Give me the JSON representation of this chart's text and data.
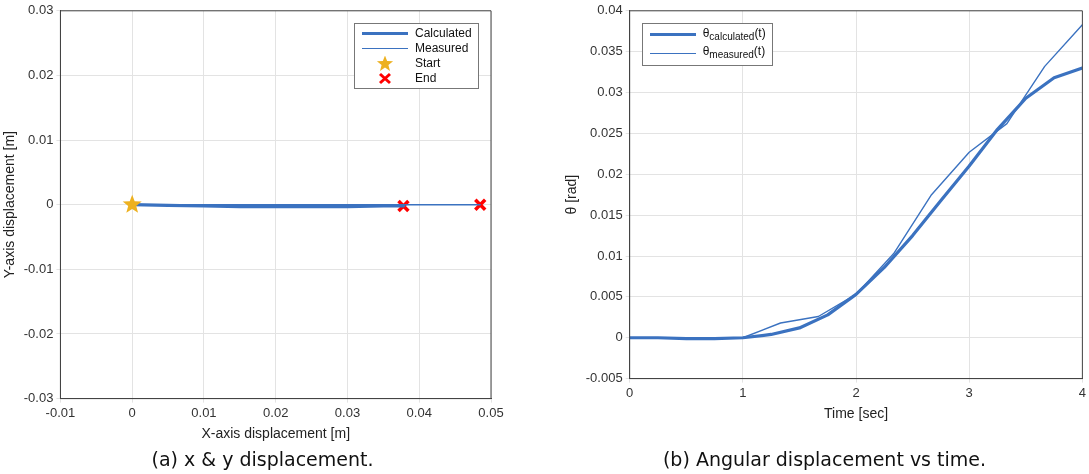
{
  "chart_data": [
    {
      "type": "line",
      "title": "(a) x & y displacement.",
      "xlabel": "X-axis displacement [m]",
      "ylabel": "Y-axis displacement [m]",
      "xlim": [
        -0.01,
        0.05
      ],
      "xticks": [
        -0.01,
        0,
        0.01,
        0.02,
        0.03,
        0.04,
        0.05
      ],
      "ylim": [
        -0.03,
        0.03
      ],
      "yticks": [
        -0.03,
        -0.02,
        -0.01,
        0,
        0.01,
        0.02,
        0.03
      ],
      "grid": true,
      "legend": "top right",
      "series": [
        {
          "name": "Calculated",
          "type": "line",
          "color": "#3b72c0",
          "marker": "none",
          "line_style": "solid",
          "x": [
            0,
            0.005,
            0.01,
            0.015,
            0.02,
            0.025,
            0.03,
            0.035,
            0.0378
          ],
          "values": [
            0,
            -0.0001,
            -0.0002,
            -0.0003,
            -0.0003,
            -0.0003,
            -0.0003,
            -0.0002,
            -0.0002
          ]
        },
        {
          "name": "Measured",
          "type": "line",
          "color": "#3b72c0",
          "marker": "none",
          "line_style": "solid",
          "x": [
            0,
            0.0485
          ],
          "values": [
            0,
            0
          ]
        },
        {
          "name": "Start",
          "type": "scatter",
          "color": "#edb120",
          "marker": "star",
          "x": [
            0
          ],
          "values": [
            0
          ]
        },
        {
          "name": "End",
          "type": "scatter",
          "color": "#ff0000",
          "marker": "cross",
          "x": [
            0.0378,
            0.0485
          ],
          "values": [
            -0.0002,
            0
          ]
        }
      ]
    },
    {
      "type": "line",
      "title": "(b) Angular displacement vs time.",
      "xlabel": "Time [sec]",
      "ylabel": "θ [rad]",
      "xlim": [
        0,
        4
      ],
      "xticks": [
        0,
        1,
        2,
        3,
        4
      ],
      "ylim": [
        -0.005,
        0.04
      ],
      "yticks": [
        -0.005,
        0,
        0.005,
        0.01,
        0.015,
        0.02,
        0.025,
        0.03,
        0.035,
        0.04
      ],
      "grid": true,
      "legend": "top left",
      "series": [
        {
          "name": "θ$_{calculated}$(t)",
          "type": "line",
          "color": "#3b72c0",
          "marker": "none",
          "line_style": "solid",
          "x": [
            0,
            0.25,
            0.5,
            0.75,
            1,
            1.25,
            1.5,
            1.75,
            2,
            2.25,
            2.5,
            2.75,
            3,
            3.25,
            3.5,
            3.75,
            4
          ],
          "values": [
            0,
            0,
            -0.0001,
            -0.0001,
            0,
            0.0004,
            0.0012,
            0.0028,
            0.0053,
            0.0086,
            0.0125,
            0.0168,
            0.021,
            0.0255,
            0.0293,
            0.0318,
            0.033
          ]
        },
        {
          "name": "θ$_{measured}$(t)",
          "type": "line",
          "color": "#3b72c0",
          "marker": "none",
          "line_style": "solid",
          "x": [
            0,
            0.333,
            0.667,
            1,
            1.333,
            1.667,
            2,
            2.333,
            2.667,
            3,
            3.333,
            3.667,
            4
          ],
          "values": [
            0,
            0,
            0,
            0,
            0.0018,
            0.0026,
            0.0053,
            0.0103,
            0.0175,
            0.0227,
            0.0262,
            0.0332,
            0.0383
          ]
        }
      ]
    }
  ]
}
